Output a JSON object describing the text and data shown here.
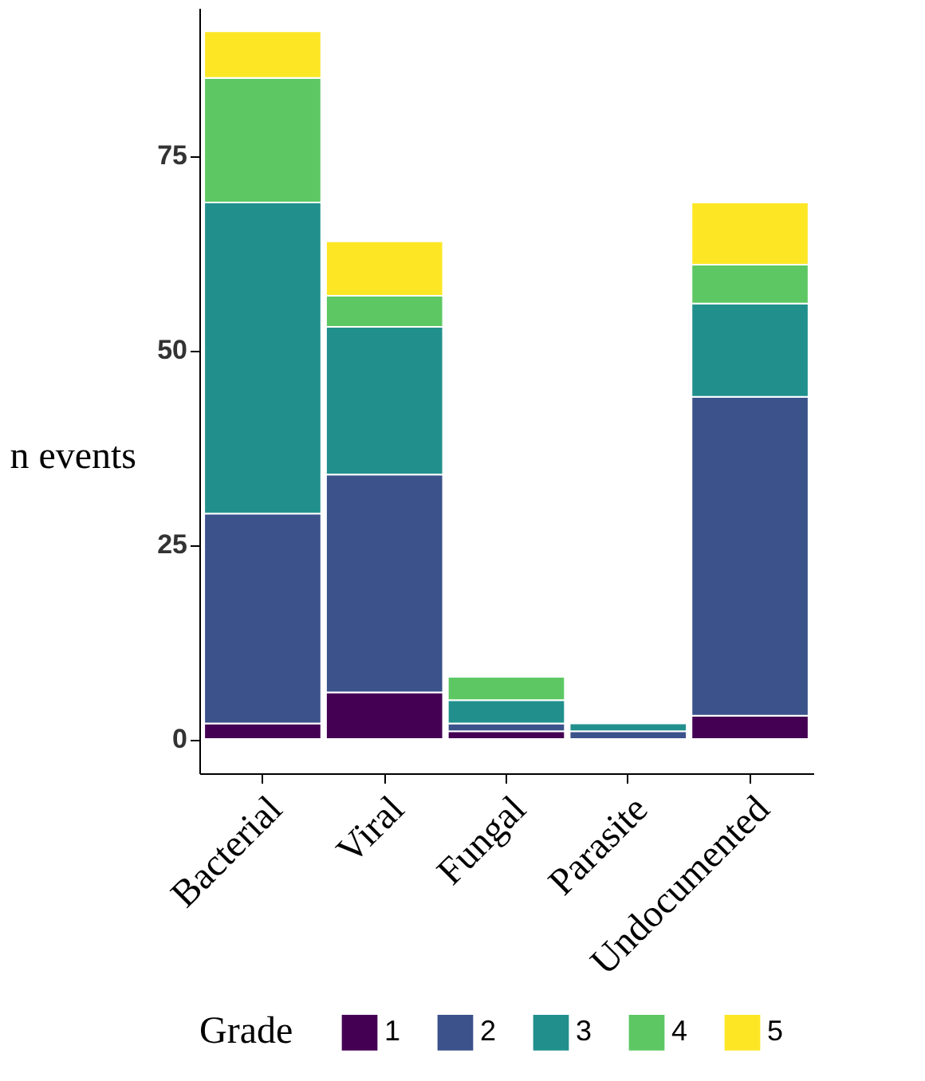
{
  "chart_data": {
    "type": "bar",
    "stacked": true,
    "ylabel": "n events",
    "legend_title": "Grade",
    "legend": "bottom",
    "grid": false,
    "categories": [
      "Bacterial",
      "Viral",
      "Fungal",
      "Parasite",
      "Undocumented"
    ],
    "ylim": [
      -4.4,
      94
    ],
    "yticks": [
      0,
      25,
      50,
      75
    ],
    "series": [
      {
        "name": "1",
        "color": "#440154",
        "values": [
          2,
          6,
          1,
          0,
          3
        ]
      },
      {
        "name": "2",
        "color": "#3b528b",
        "values": [
          27,
          28,
          1,
          1,
          41
        ]
      },
      {
        "name": "3",
        "color": "#21908d",
        "values": [
          40,
          19,
          3,
          1,
          12
        ]
      },
      {
        "name": "4",
        "color": "#5dc863",
        "values": [
          16,
          4,
          3,
          0,
          5
        ]
      },
      {
        "name": "5",
        "color": "#fde725",
        "values": [
          6,
          7,
          0,
          0,
          8
        ]
      }
    ]
  }
}
